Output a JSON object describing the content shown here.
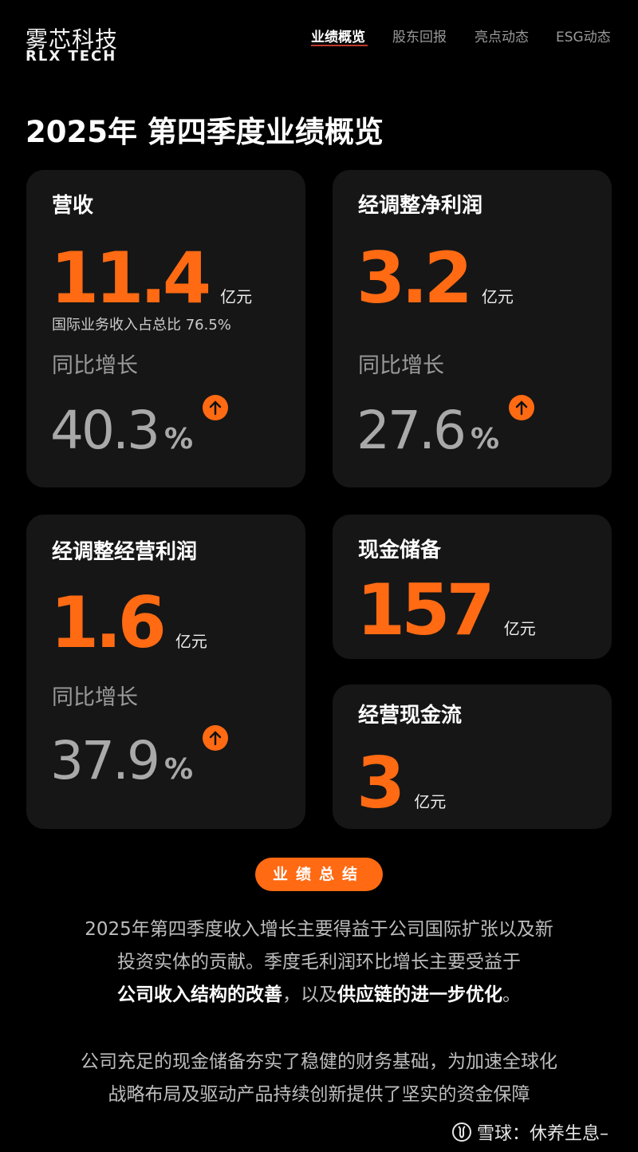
{
  "header": {
    "logo_cn": "雾芯科技",
    "logo_en": "RLX TECH",
    "nav": [
      {
        "label": "业绩概览",
        "active": true
      },
      {
        "label": "股东回报",
        "active": false
      },
      {
        "label": "亮点动态",
        "active": false
      },
      {
        "label": "ESG动态",
        "active": false
      }
    ]
  },
  "page_title": "2025年 第四季度业绩概览",
  "colors": {
    "accent": "#ff6a13",
    "card_bg": "#161616",
    "background": "#000000"
  },
  "cards": {
    "revenue": {
      "title": "营收",
      "value": "11.4",
      "unit": "亿元",
      "note": "国际业务收入占总比 76.5%",
      "yoy_label": "同比增长",
      "yoy_value": "40.3",
      "yoy_unit": "%",
      "icon": "arrow-up-icon"
    },
    "adj_net_profit": {
      "title": "经调整净利润",
      "value": "3.2",
      "unit": "亿元",
      "yoy_label": "同比增长",
      "yoy_value": "27.6",
      "yoy_unit": "%",
      "icon": "arrow-up-icon"
    },
    "adj_operating_profit": {
      "title": "经调整经营利润",
      "value": "1.6",
      "unit": "亿元",
      "yoy_label": "同比增长",
      "yoy_value": "37.9",
      "yoy_unit": "%",
      "icon": "arrow-up-icon"
    },
    "cash_reserve": {
      "title": "现金储备",
      "value": "157",
      "unit": "亿元"
    },
    "operating_cash_flow": {
      "title": "经营现金流",
      "value": "3",
      "unit": "亿元"
    }
  },
  "summary": {
    "button_label": "业绩总结",
    "p1_line1": "2025年第四季度收入增长主要得益于公司国际扩张以及新",
    "p1_line2": "投资实体的贡献。季度毛利润环比增长主要受益于",
    "p1_bold1": "公司收入结构的改善",
    "p1_mid": "，以及",
    "p1_bold2": "供应链的进一步优化",
    "p1_end": "。",
    "p2_line1": "公司充足的现金储备夯实了稳健的财务基础，为加速全球化",
    "p2_line2": "战略布局及驱动产品持续创新提供了坚实的资金保障"
  },
  "watermark": {
    "text": "雪球：休养生息–"
  }
}
